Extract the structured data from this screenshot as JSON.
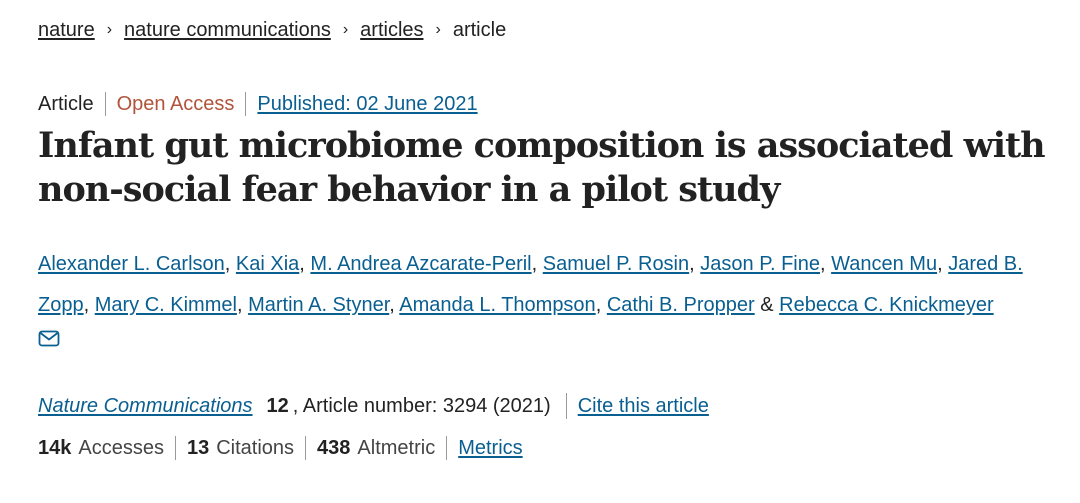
{
  "breadcrumb": {
    "items": [
      "nature",
      "nature communications",
      "articles"
    ],
    "current": "article",
    "separator": "›"
  },
  "meta": {
    "type": "Article",
    "access": "Open Access",
    "published": "Published: 02 June 2021"
  },
  "article": {
    "title": "Infant gut microbiome composition is associated with non-social fear behavior in a pilot study"
  },
  "authors": {
    "list": [
      "Alexander L. Carlson",
      "Kai Xia",
      "M. Andrea Azcarate-Peril",
      "Samuel P. Rosin",
      "Jason P. Fine",
      "Wancen Mu",
      "Jared B. Zopp",
      "Mary C. Kimmel",
      "Martin A. Styner",
      "Amanda L. Thompson",
      "Cathi B. Propper",
      "Rebecca C. Knickmeyer"
    ],
    "comma": ", ",
    "ampersand": " & ",
    "icon": "mail-icon"
  },
  "citation": {
    "journal": "Nature Communications",
    "volume": "12",
    "article_number": ", Article number: 3294 (2021)",
    "cite_link": "Cite this article"
  },
  "metrics": {
    "accesses_value": "14k",
    "accesses_label": "Accesses",
    "citations_value": "13",
    "citations_label": "Citations",
    "altmetric_value": "438",
    "altmetric_label": "Altmetric",
    "metrics_link": "Metrics"
  },
  "colors": {
    "link": "#0a5f91",
    "open_access": "#b1543b",
    "text": "#222222"
  }
}
